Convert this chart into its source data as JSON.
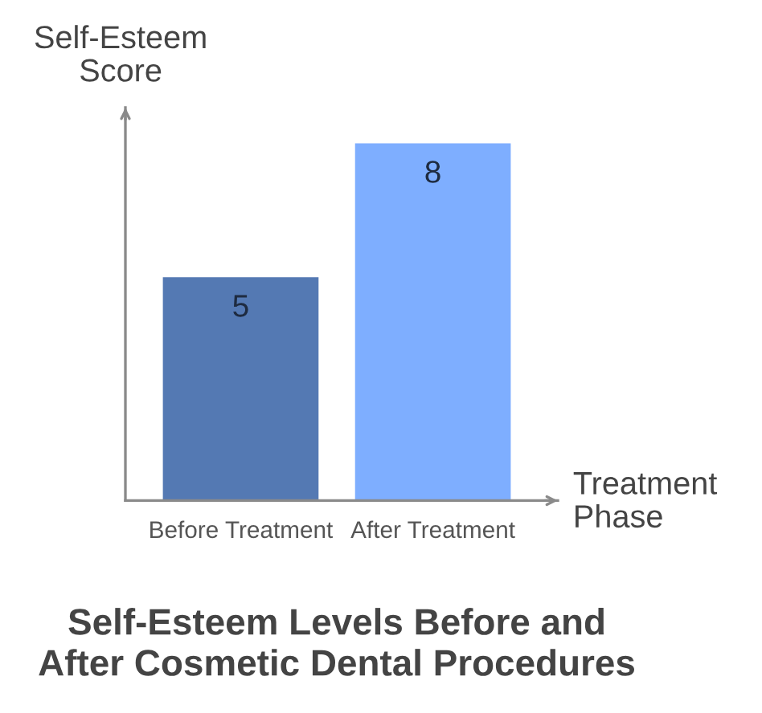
{
  "chart_data": {
    "type": "bar",
    "title": "Self-Esteem Levels Before and\nAfter Cosmetic Dental Procedures",
    "xlabel": "Treatment\nPhase",
    "ylabel": "Self-Esteem\nScore",
    "categories": [
      "Before Treatment",
      "After Treatment"
    ],
    "values": [
      5,
      8
    ],
    "colors": [
      "#5479b3",
      "#7eaeff"
    ],
    "data_labels": true,
    "tick_labels": "x"
  }
}
